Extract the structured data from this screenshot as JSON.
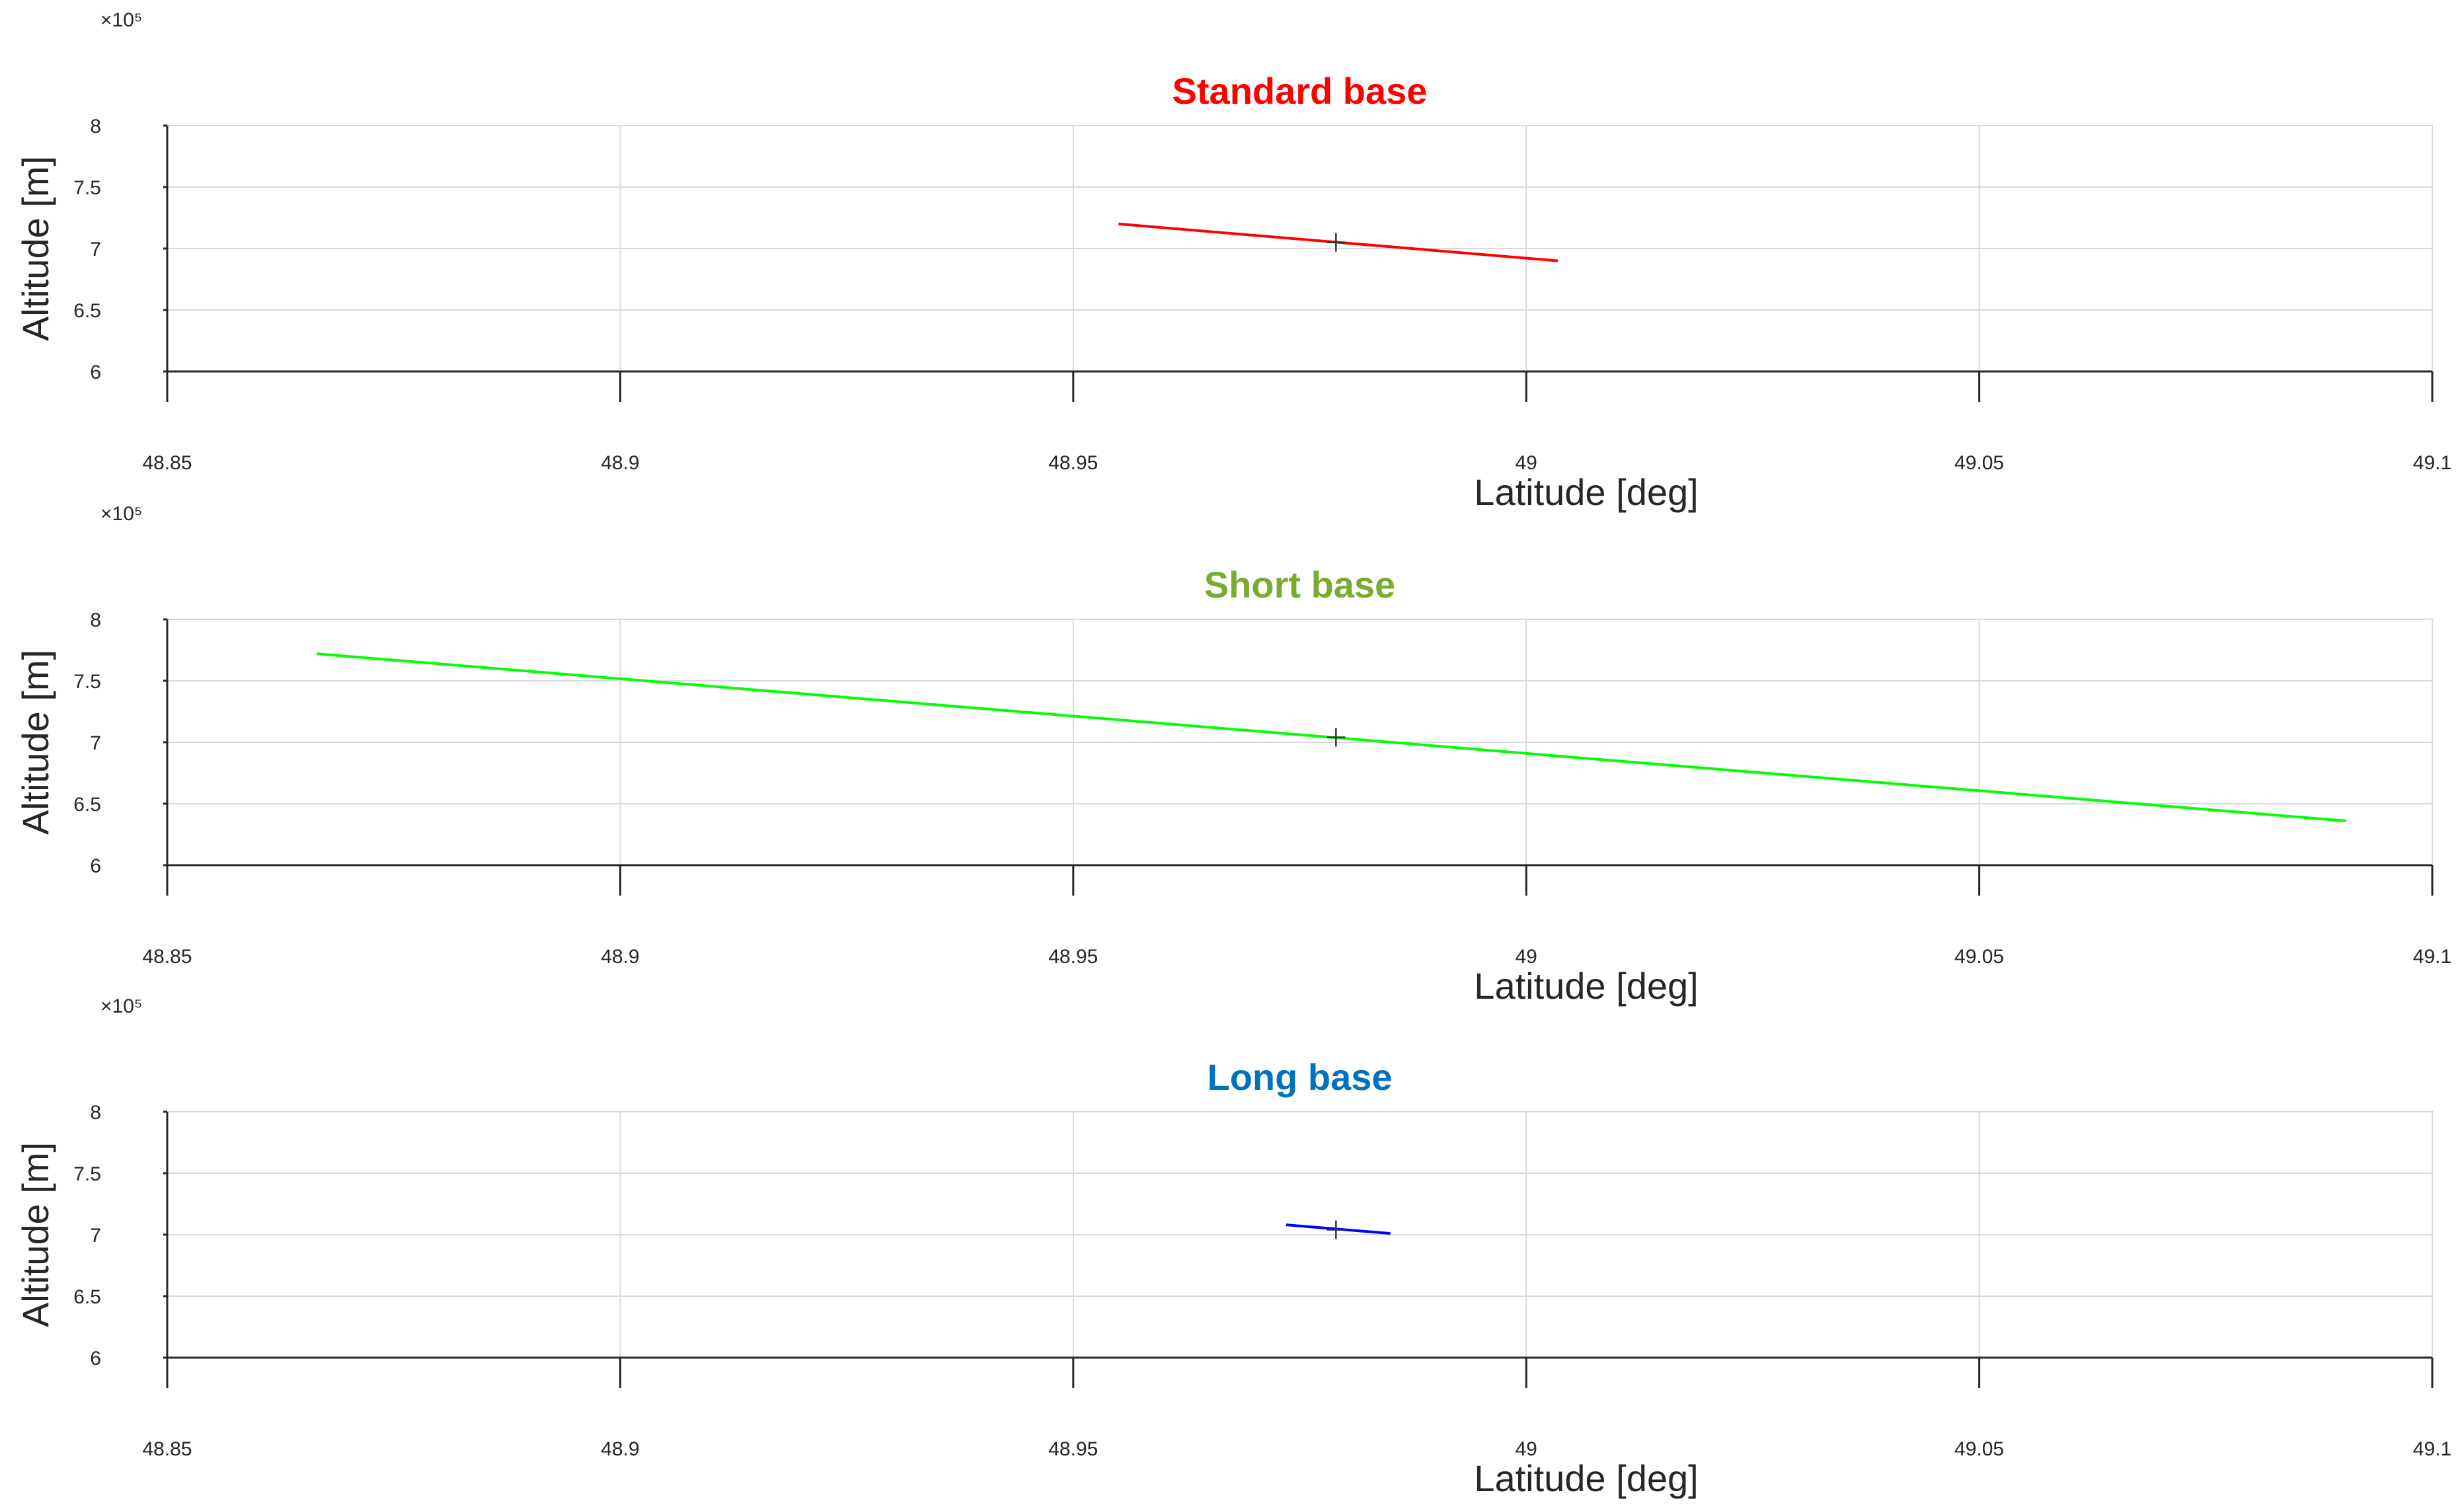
{
  "chart_data": [
    {
      "type": "line",
      "title": "Standard base",
      "title_color": "#ff0000",
      "xlabel": "Latitude [deg]",
      "ylabel": "Altitude [m]",
      "y_exponent_label": "×10⁵",
      "xlim": [
        48.85,
        49.1
      ],
      "ylim": [
        600000,
        800000
      ],
      "xticks": [
        "48.85",
        "48.9",
        "48.95",
        "49",
        "49.05",
        "49.1"
      ],
      "yticks": [
        "6",
        "6.5",
        "7",
        "7.5",
        "8"
      ],
      "grid": true,
      "series": [
        {
          "color": "#ff0000",
          "x": [
            48.955,
            49.0035
          ],
          "y": [
            720000,
            690000
          ]
        }
      ],
      "marker": {
        "symbol": "+",
        "x": 48.979,
        "y": 705000
      }
    },
    {
      "type": "line",
      "title": "Short base",
      "title_color": "#77ac30",
      "xlabel": "Latitude [deg]",
      "ylabel": "Altitude [m]",
      "y_exponent_label": "×10⁵",
      "xlim": [
        48.85,
        49.1
      ],
      "ylim": [
        600000,
        800000
      ],
      "xticks": [
        "48.85",
        "48.9",
        "48.95",
        "49",
        "49.05",
        "49.1"
      ],
      "yticks": [
        "6",
        "6.5",
        "7",
        "7.5",
        "8"
      ],
      "grid": true,
      "series": [
        {
          "color": "#00ff00",
          "x": [
            48.8665,
            49.0905
          ],
          "y": [
            772000,
            636000
          ]
        }
      ],
      "marker": {
        "symbol": "+",
        "x": 48.979,
        "y": 704000
      }
    },
    {
      "type": "line",
      "title": "Long base",
      "title_color": "#0072bd",
      "xlabel": "Latitude [deg]",
      "ylabel": "Altitude [m]",
      "y_exponent_label": "×10⁵",
      "xlim": [
        48.85,
        49.1
      ],
      "ylim": [
        600000,
        800000
      ],
      "xticks": [
        "48.85",
        "48.9",
        "48.95",
        "49",
        "49.05",
        "49.1"
      ],
      "yticks": [
        "6",
        "6.5",
        "7",
        "7.5",
        "8"
      ],
      "grid": true,
      "series": [
        {
          "color": "#0000ff",
          "x": [
            48.9735,
            48.985
          ],
          "y": [
            708000,
            701000
          ]
        }
      ],
      "marker": {
        "symbol": "+",
        "x": 48.979,
        "y": 704000
      }
    }
  ]
}
